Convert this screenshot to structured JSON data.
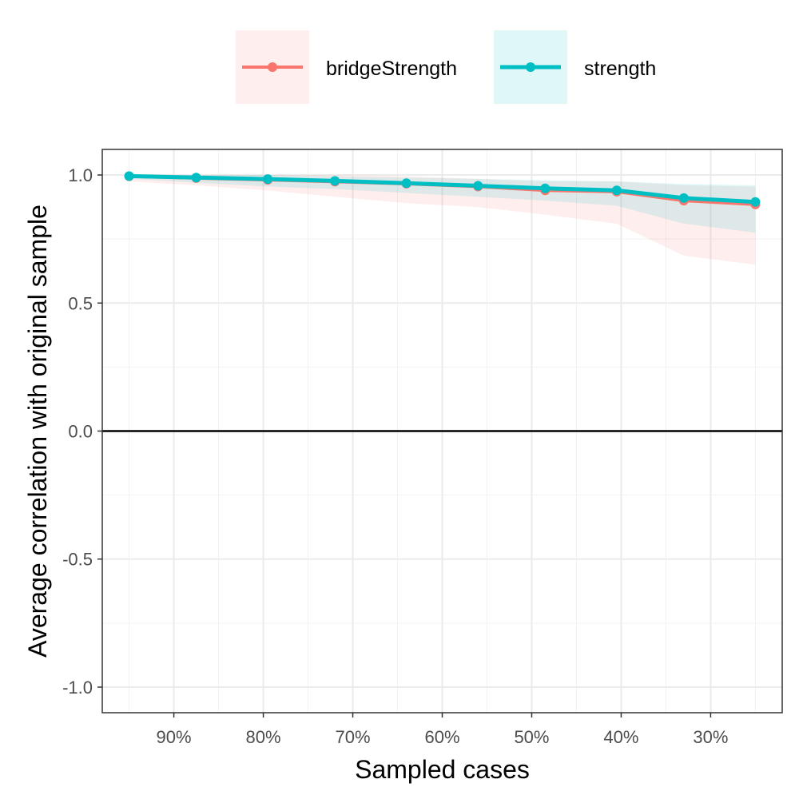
{
  "chart_data": {
    "type": "line",
    "title": "",
    "xlabel": "Sampled cases",
    "ylabel": "Average correlation with original sample",
    "xlim": [
      0.98,
      0.22
    ],
    "x_reversed": true,
    "ylim": [
      -1.1,
      1.1
    ],
    "x_ticks": [
      0.9,
      0.8,
      0.7,
      0.6,
      0.5,
      0.4,
      0.3
    ],
    "x_tick_labels": [
      "90%",
      "80%",
      "70%",
      "60%",
      "50%",
      "40%",
      "30%"
    ],
    "y_ticks": [
      -1.0,
      -0.5,
      0.0,
      0.5,
      1.0
    ],
    "y_tick_labels": [
      "-1.0",
      "-0.5",
      "0.0",
      "0.5",
      "1.0"
    ],
    "zero_line": true,
    "grid": true,
    "legend_position": "top",
    "x": [
      0.95,
      0.875,
      0.795,
      0.72,
      0.64,
      0.56,
      0.485,
      0.405,
      0.33,
      0.25
    ],
    "series": [
      {
        "name": "bridgeStrength",
        "color": "#F8766D",
        "values": [
          0.995,
          0.988,
          0.981,
          0.974,
          0.966,
          0.955,
          0.94,
          0.935,
          0.9,
          0.885
        ],
        "lower": [
          0.975,
          0.96,
          0.94,
          0.915,
          0.89,
          0.875,
          0.845,
          0.81,
          0.685,
          0.65
        ],
        "upper": [
          1.0,
          1.0,
          1.0,
          1.0,
          0.995,
          0.985,
          0.975,
          0.975,
          0.96,
          0.955
        ]
      },
      {
        "name": "strength",
        "color": "#00BFC4",
        "values": [
          0.996,
          0.99,
          0.984,
          0.977,
          0.968,
          0.958,
          0.948,
          0.94,
          0.91,
          0.895
        ],
        "lower": [
          0.985,
          0.97,
          0.955,
          0.945,
          0.93,
          0.915,
          0.9,
          0.88,
          0.81,
          0.775
        ],
        "upper": [
          1.0,
          1.0,
          1.0,
          0.995,
          0.99,
          0.985,
          0.98,
          0.975,
          0.965,
          0.96
        ]
      }
    ]
  }
}
